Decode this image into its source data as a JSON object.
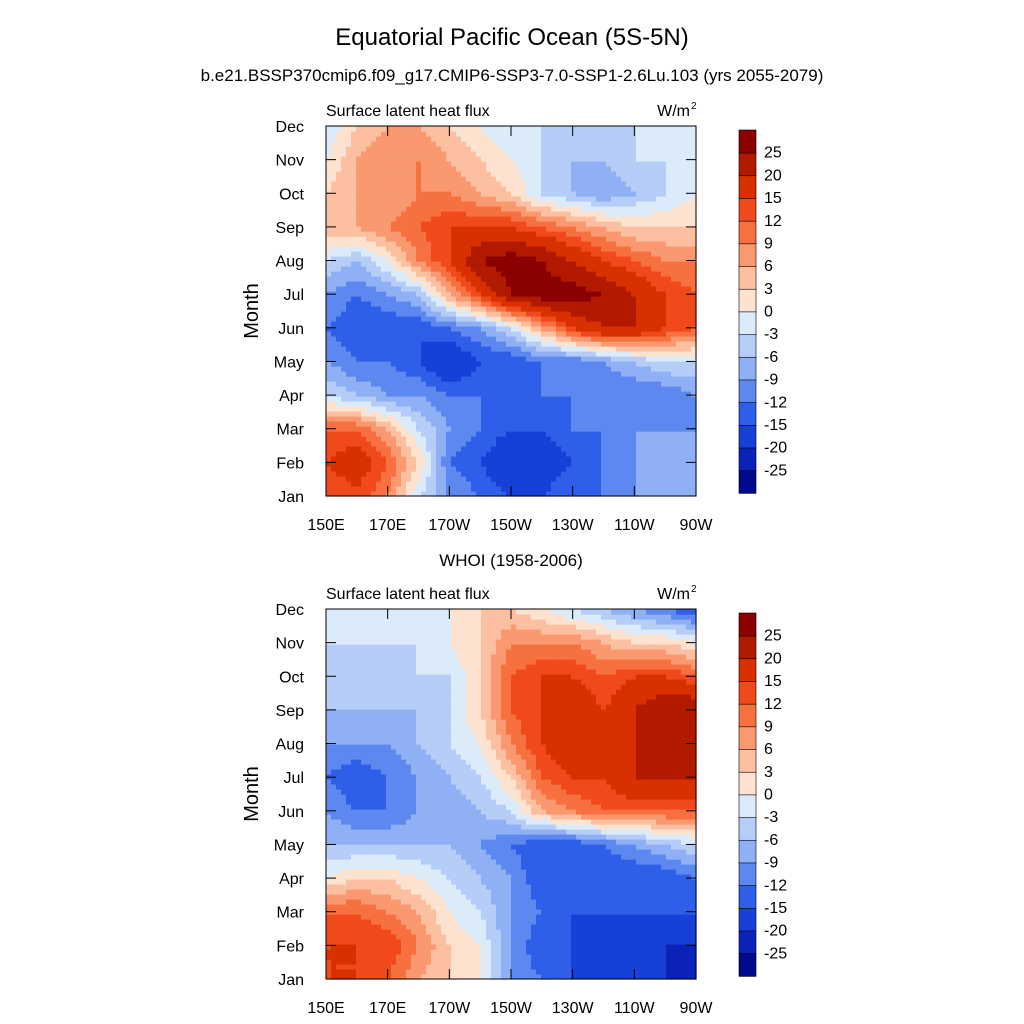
{
  "title": "Equatorial Pacific Ocean (5S-5N)",
  "subtitle": "b.e21.BSSP370cmip6.f09_g17.CMIP6-SSP3-7.0-SSP1-2.6Lu.103 (yrs 2055-2079)",
  "colorbar": {
    "levels": [
      "25",
      "20",
      "15",
      "12",
      "9",
      "6",
      "3",
      "0",
      "-3",
      "-6",
      "-9",
      "-12",
      "-15",
      "-20",
      "-25"
    ],
    "colors": [
      "#8b0000",
      "#b21a00",
      "#d93000",
      "#f04a1c",
      "#f77040",
      "#fa9870",
      "#fcbfa0",
      "#fde3cf",
      "#dcebfa",
      "#b5cdf7",
      "#8fb0f4",
      "#5d88f0",
      "#2f5fe8",
      "#1640d8",
      "#0a22b8",
      "#000a8c"
    ]
  },
  "chart_data": [
    {
      "type": "heatmap",
      "title": "",
      "left_label": "Surface latent heat flux",
      "units_label": "W/m",
      "units_sup": "2",
      "ylabel": "Month",
      "xlabel": "",
      "xticks": [
        "150E",
        "170E",
        "170W",
        "150W",
        "130W",
        "110W",
        "90W"
      ],
      "yticks": [
        "Jan",
        "Feb",
        "Mar",
        "Apr",
        "May",
        "Jun",
        "Jul",
        "Aug",
        "Sep",
        "Oct",
        "Nov",
        "Dec"
      ],
      "x": [
        150,
        160,
        170,
        180,
        190,
        200,
        210,
        220,
        230,
        240,
        250,
        260,
        270
      ],
      "z": [
        [
          12,
          14,
          9,
          -3,
          -9,
          -12,
          -15,
          -15,
          -12,
          -12,
          -9,
          -9,
          -6
        ],
        [
          15,
          18,
          12,
          3,
          -12,
          -15,
          -20,
          -18,
          -15,
          -12,
          -9,
          -9,
          -6
        ],
        [
          12,
          12,
          6,
          -3,
          -9,
          -12,
          -15,
          -15,
          -12,
          -12,
          -9,
          -9,
          -9
        ],
        [
          -3,
          -6,
          -9,
          -9,
          -12,
          -12,
          -12,
          -12,
          -12,
          -12,
          -12,
          -12,
          -9
        ],
        [
          -9,
          -12,
          -12,
          -15,
          -20,
          -15,
          -15,
          -12,
          -12,
          -9,
          -6,
          -3,
          -3
        ],
        [
          -12,
          -15,
          -15,
          -15,
          -12,
          -9,
          -3,
          6,
          15,
          20,
          20,
          15,
          12
        ],
        [
          -9,
          -12,
          -9,
          -6,
          6,
          15,
          25,
          28,
          28,
          25,
          20,
          15,
          12
        ],
        [
          -3,
          -6,
          0,
          9,
          15,
          25,
          28,
          25,
          20,
          15,
          12,
          9,
          9
        ],
        [
          6,
          6,
          9,
          12,
          15,
          15,
          15,
          12,
          9,
          6,
          3,
          3,
          3
        ],
        [
          3,
          6,
          6,
          9,
          9,
          6,
          3,
          -3,
          -6,
          -9,
          -6,
          -3,
          0
        ],
        [
          0,
          6,
          9,
          9,
          6,
          3,
          0,
          -3,
          -6,
          -6,
          -3,
          -3,
          0
        ],
        [
          -3,
          3,
          6,
          6,
          3,
          0,
          -3,
          -3,
          -3,
          -3,
          -3,
          -3,
          0
        ]
      ],
      "zlevels": [
        -25,
        -20,
        -15,
        -12,
        -9,
        -6,
        -3,
        0,
        3,
        6,
        9,
        12,
        15,
        20,
        25
      ]
    },
    {
      "type": "heatmap",
      "title": "WHOI (1958-2006)",
      "left_label": "Surface latent heat flux",
      "units_label": "W/m",
      "units_sup": "2",
      "ylabel": "Month",
      "xlabel": "",
      "xticks": [
        "150E",
        "170E",
        "170W",
        "150W",
        "130W",
        "110W",
        "90W"
      ],
      "yticks": [
        "Jan",
        "Feb",
        "Mar",
        "Apr",
        "May",
        "Jun",
        "Jul",
        "Aug",
        "Sep",
        "Oct",
        "Nov",
        "Dec"
      ],
      "x": [
        150,
        160,
        170,
        180,
        190,
        200,
        210,
        220,
        230,
        240,
        250,
        260,
        270
      ],
      "z": [
        [
          15,
          15,
          12,
          6,
          3,
          0,
          -9,
          -12,
          -15,
          -15,
          -15,
          -20,
          -25
        ],
        [
          15,
          15,
          15,
          9,
          3,
          0,
          -9,
          -15,
          -15,
          -20,
          -20,
          -20,
          -20
        ],
        [
          12,
          12,
          9,
          6,
          0,
          -3,
          -9,
          -12,
          -15,
          -15,
          -15,
          -15,
          -15
        ],
        [
          0,
          3,
          3,
          0,
          -3,
          -6,
          -9,
          -15,
          -15,
          -15,
          -15,
          -15,
          -12
        ],
        [
          -6,
          -6,
          -6,
          -6,
          -6,
          -9,
          -12,
          -15,
          -15,
          -12,
          -9,
          -6,
          -3
        ],
        [
          -9,
          -12,
          -12,
          -9,
          -9,
          -6,
          -3,
          6,
          9,
          12,
          12,
          12,
          12
        ],
        [
          -12,
          -15,
          -12,
          -9,
          -6,
          -3,
          3,
          12,
          15,
          15,
          20,
          20,
          20
        ],
        [
          -9,
          -9,
          -9,
          -6,
          -3,
          0,
          9,
          15,
          20,
          20,
          20,
          20,
          20
        ],
        [
          -6,
          -6,
          -6,
          -6,
          -3,
          3,
          12,
          15,
          20,
          15,
          20,
          25,
          25
        ],
        [
          -6,
          -6,
          -6,
          -3,
          -3,
          3,
          12,
          15,
          15,
          12,
          15,
          15,
          12
        ],
        [
          -3,
          -3,
          -3,
          -3,
          0,
          3,
          9,
          9,
          9,
          6,
          3,
          3,
          0
        ],
        [
          -3,
          -3,
          0,
          0,
          0,
          3,
          3,
          0,
          -3,
          -6,
          -9,
          -12,
          -15
        ]
      ],
      "zlevels": [
        -25,
        -20,
        -15,
        -12,
        -9,
        -6,
        -3,
        0,
        3,
        6,
        9,
        12,
        15,
        20,
        25
      ]
    }
  ]
}
